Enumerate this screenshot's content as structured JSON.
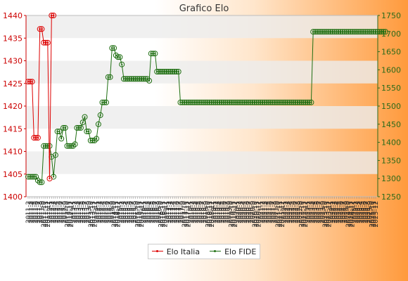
{
  "chart_data": {
    "type": "line",
    "title": "Grafico Elo",
    "y_left": {
      "min": 1400,
      "max": 1440,
      "ticks": [
        1400,
        1405,
        1410,
        1415,
        1420,
        1425,
        1430,
        1435,
        1440
      ]
    },
    "y_right": {
      "min": 1250,
      "max": 1750,
      "ticks": [
        1250,
        1300,
        1350,
        1400,
        1450,
        1500,
        1550,
        1600,
        1650,
        1700,
        1750
      ]
    },
    "x_tick_labels": [
      "2011-2",
      "2011-3",
      "2011-4",
      "2011-5",
      "2011-6",
      "2011-7",
      "2011-8",
      "2011-9",
      "2011-10",
      "2011-11",
      "2011-12",
      "2012-1",
      "2012-2",
      "2012-3",
      "2012-4",
      "2012-5",
      "2012-6",
      "2012-7",
      "2012-8",
      "2012-9",
      "2012-10",
      "2012-11",
      "2012-12",
      "2013-1",
      "2013-2",
      "2013-3",
      "2013-4",
      "2013-5",
      "2013-6",
      "2013-7",
      "2013-8",
      "2013-9",
      "2013-10",
      "2013-11",
      "2013-12",
      "2014-1",
      "2014-2",
      "2014-3",
      "2014-4",
      "2014-5",
      "2014-6",
      "2014-7",
      "2014-8",
      "2014-9",
      "2014-10",
      "2014-11",
      "2014-12",
      "2015-1",
      "2015-2",
      "2015-3",
      "2015-4",
      "2015-5",
      "2015-6",
      "2015-7",
      "2015-8",
      "2015-9",
      "2015-10",
      "2015-11",
      "2015-12",
      "2016-1",
      "2016-2",
      "2016-3",
      "2016-4",
      "2016-5",
      "2016-6",
      "2016-7",
      "2016-8",
      "2016-9",
      "2016-10",
      "2016-11",
      "2016-12",
      "2017-1",
      "2017-2",
      "2017-3",
      "2017-4",
      "2017-5",
      "2017-6",
      "2017-7",
      "2017-8",
      "2017-9",
      "2017-10",
      "2017-11",
      "2017-12",
      "2018-1",
      "2018-2",
      "2018-3",
      "2018-4",
      "2018-5",
      "2018-6",
      "2018-7",
      "2018-8",
      "2018-9",
      "2018-10",
      "2018-11",
      "2018-12",
      "2019-1",
      "2019-2",
      "2019-3",
      "2019-4",
      "2019-5",
      "2019-6",
      "2019-7",
      "2019-8",
      "2019-9",
      "2019-10",
      "2019-11",
      "2019-12",
      "2020-1",
      "2020-2",
      "2020-3",
      "2020-4",
      "2020-5",
      "2020-6",
      "2020-7",
      "2020-8",
      "2020-9",
      "2020-10",
      "2020-11",
      "2020-12",
      "2021-1",
      "2021-2",
      "2021-3",
      "2021-4",
      "2021-5",
      "2021-6",
      "2021-7",
      "2021-8",
      "2021-9",
      "2021-10",
      "2021-11",
      "2021-12",
      "2022-1",
      "2022-2",
      "2022-3",
      "2022-4",
      "2022-5",
      "2022-6",
      "2022-7",
      "2022-8",
      "2022-9",
      "2022-10",
      "2022-11",
      "2022-12",
      "2023-1",
      "2023-2",
      "2023-3",
      "2023-4",
      "2023-5",
      "2023-6",
      "2023-7",
      "2023-8",
      "2023-9",
      "2023-10",
      "2023-11",
      "2023-12",
      "2024-1",
      "2024-2",
      "2024-3",
      "2024-4",
      "2024-5",
      "2024-6",
      "2024-7",
      "2024-8",
      "2024-9",
      "2024-10",
      "2024-11",
      "2024-12",
      "2025-1",
      "2025-2",
      "2025-3",
      "2025-4",
      "2025-5",
      "2025-6",
      "2025-7",
      "2025-8",
      "2025-9",
      "2025-10",
      "2025-11",
      "2025-12"
    ],
    "grid": "horizontal bands",
    "legend_position": "bottom-center",
    "series": [
      {
        "name": "Elo Italia",
        "axis": "left",
        "color": "#dd0000",
        "values": [
          1425.4,
          1425.4,
          1425.4,
          1413.0,
          1413.0,
          1413.0,
          1437.0,
          1437.0,
          1434.0,
          1434.0,
          1434.0,
          1404.0,
          1440.0,
          1440.0
        ]
      },
      {
        "name": "Elo FIDE",
        "axis": "right",
        "color": "#1f6f12",
        "values": [
          1305,
          1305,
          1305,
          1305,
          1305,
          1295,
          1290,
          1290,
          1390,
          1390,
          1390,
          1390,
          1360,
          1305,
          1365,
          1430,
          1430,
          1410,
          1440,
          1440,
          1390,
          1390,
          1390,
          1390,
          1395,
          1440,
          1440,
          1440,
          1455,
          1470,
          1430,
          1430,
          1405,
          1405,
          1405,
          1410,
          1450,
          1475,
          1510,
          1510,
          1510,
          1580,
          1580,
          1660,
          1660,
          1640,
          1635,
          1635,
          1615,
          1575,
          1575,
          1575,
          1575,
          1575,
          1575,
          1575,
          1575,
          1575,
          1575,
          1575,
          1575,
          1575,
          1570,
          1645,
          1645,
          1645,
          1595,
          1595,
          1595,
          1595,
          1595,
          1595,
          1595,
          1595,
          1595,
          1595,
          1595,
          1595,
          1510,
          1510,
          1510,
          1510,
          1510,
          1510,
          1510,
          1510,
          1510,
          1510,
          1510,
          1510,
          1510,
          1510,
          1510,
          1510,
          1510,
          1510,
          1510,
          1510,
          1510,
          1510,
          1510,
          1510,
          1510,
          1510,
          1510,
          1510,
          1510,
          1510,
          1510,
          1510,
          1510,
          1510,
          1510,
          1510,
          1510,
          1510,
          1510,
          1510,
          1510,
          1510,
          1510,
          1510,
          1510,
          1510,
          1510,
          1510,
          1510,
          1510,
          1510,
          1510,
          1510,
          1510,
          1510,
          1510,
          1510,
          1510,
          1510,
          1510,
          1510,
          1510,
          1510,
          1510,
          1510,
          1510,
          1510,
          1510,
          1705,
          1705,
          1705,
          1705,
          1705,
          1705,
          1705,
          1705,
          1705,
          1705,
          1705,
          1705,
          1705,
          1705,
          1705,
          1705,
          1705,
          1705,
          1705,
          1705,
          1705,
          1705,
          1705,
          1705,
          1705,
          1705,
          1705,
          1705,
          1705,
          1705,
          1705,
          1705,
          1705,
          1705,
          1705,
          1705,
          1705,
          1705
        ]
      }
    ]
  }
}
